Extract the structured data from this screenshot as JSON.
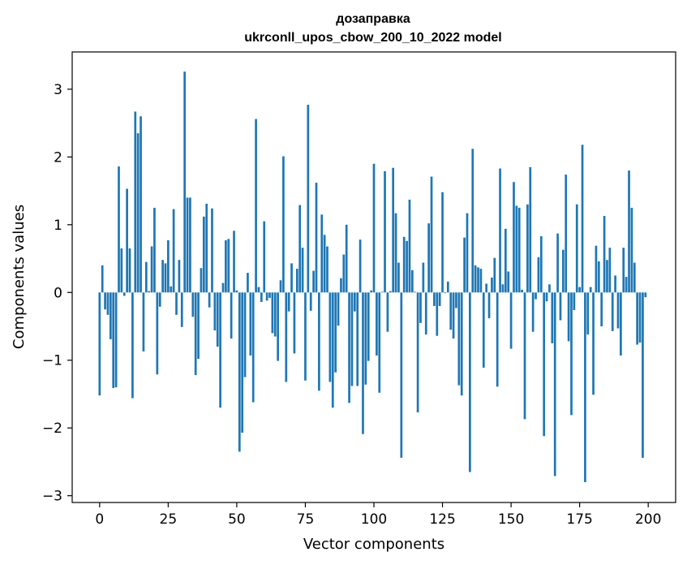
{
  "chart_data": {
    "type": "bar",
    "title": "дозаправка",
    "subtitle": "ukrconll_upos_cbow_200_10_2022 model",
    "xlabel": "Vector components",
    "ylabel": "Components values",
    "xlim": [
      -10,
      210
    ],
    "ylim": [
      -3.1,
      3.55
    ],
    "xticks": [
      0,
      25,
      50,
      75,
      100,
      125,
      150,
      175,
      200
    ],
    "yticks": [
      -3,
      -2,
      -1,
      0,
      1,
      2,
      3
    ],
    "grid": false,
    "bar_color": "#1f77b4",
    "x": [
      0,
      1,
      2,
      3,
      4,
      5,
      6,
      7,
      8,
      9,
      10,
      11,
      12,
      13,
      14,
      15,
      16,
      17,
      18,
      19,
      20,
      21,
      22,
      23,
      24,
      25,
      26,
      27,
      28,
      29,
      30,
      31,
      32,
      33,
      34,
      35,
      36,
      37,
      38,
      39,
      40,
      41,
      42,
      43,
      44,
      45,
      46,
      47,
      48,
      49,
      50,
      51,
      52,
      53,
      54,
      55,
      56,
      57,
      58,
      59,
      60,
      61,
      62,
      63,
      64,
      65,
      66,
      67,
      68,
      69,
      70,
      71,
      72,
      73,
      74,
      75,
      76,
      77,
      78,
      79,
      80,
      81,
      82,
      83,
      84,
      85,
      86,
      87,
      88,
      89,
      90,
      91,
      92,
      93,
      94,
      95,
      96,
      97,
      98,
      99,
      100,
      101,
      102,
      103,
      104,
      105,
      106,
      107,
      108,
      109,
      110,
      111,
      112,
      113,
      114,
      115,
      116,
      117,
      118,
      119,
      120,
      121,
      122,
      123,
      124,
      125,
      126,
      127,
      128,
      129,
      130,
      131,
      132,
      133,
      134,
      135,
      136,
      137,
      138,
      139,
      140,
      141,
      142,
      143,
      144,
      145,
      146,
      147,
      148,
      149,
      150,
      151,
      152,
      153,
      154,
      155,
      156,
      157,
      158,
      159,
      160,
      161,
      162,
      163,
      164,
      165,
      166,
      167,
      168,
      169,
      170,
      171,
      172,
      173,
      174,
      175,
      176,
      177,
      178,
      179,
      180,
      181,
      182,
      183,
      184,
      185,
      186,
      187,
      188,
      189,
      190,
      191,
      192,
      193,
      194,
      195,
      196,
      197,
      198,
      199
    ],
    "values": [
      -1.52,
      0.4,
      -0.25,
      -0.33,
      -0.69,
      -1.41,
      -1.4,
      1.86,
      0.65,
      -0.05,
      1.53,
      0.65,
      -1.56,
      2.67,
      2.35,
      2.6,
      -0.87,
      0.45,
      0.02,
      0.68,
      1.25,
      -1.21,
      -0.21,
      0.48,
      0.43,
      0.77,
      0.09,
      1.23,
      -0.33,
      0.48,
      -0.51,
      3.26,
      1.4,
      1.4,
      -0.36,
      -1.22,
      -0.98,
      0.36,
      1.12,
      1.31,
      -0.22,
      1.24,
      -0.56,
      -0.8,
      -1.7,
      0.14,
      0.77,
      0.79,
      -0.68,
      0.91,
      0.03,
      -2.35,
      -2.07,
      -1.25,
      0.29,
      -0.93,
      -1.62,
      2.56,
      0.08,
      -0.14,
      1.05,
      -0.12,
      -0.08,
      -0.6,
      -0.65,
      -1.01,
      0.18,
      2.01,
      -1.32,
      -0.28,
      0.43,
      -0.9,
      0.35,
      1.29,
      0.66,
      -1.3,
      2.77,
      -0.27,
      0.32,
      1.62,
      -1.45,
      1.15,
      0.85,
      0.68,
      -1.32,
      -1.7,
      -1.18,
      -0.49,
      0.21,
      0.56,
      1.0,
      -1.63,
      -1.38,
      -0.28,
      -1.38,
      0.78,
      -2.09,
      -1.36,
      -1.01,
      0.03,
      1.9,
      -0.93,
      -1.48,
      0.01,
      1.79,
      -0.58,
      0.02,
      1.84,
      1.17,
      0.44,
      -2.44,
      0.82,
      0.76,
      1.37,
      0.33,
      0.01,
      -1.77,
      -0.45,
      0.44,
      -0.62,
      1.02,
      1.71,
      -0.2,
      -0.64,
      -0.2,
      1.48,
      -0.01,
      0.16,
      -0.55,
      -0.68,
      -0.23,
      -1.37,
      -1.52,
      0.81,
      1.17,
      -2.65,
      2.12,
      0.4,
      0.37,
      0.35,
      -1.11,
      0.13,
      -0.38,
      0.22,
      0.51,
      -1.39,
      1.83,
      0.12,
      0.94,
      0.31,
      -0.83,
      1.63,
      1.28,
      1.25,
      0.04,
      -1.87,
      1.3,
      1.85,
      -0.58,
      -0.1,
      0.52,
      0.83,
      -2.12,
      -0.13,
      0.12,
      -0.75,
      -2.71,
      0.87,
      -0.41,
      0.63,
      1.74,
      -0.72,
      -1.81,
      -0.26,
      1.3,
      0.08,
      2.18,
      -2.8,
      -0.62,
      0.08,
      -1.51,
      0.69,
      0.46,
      -0.5,
      1.13,
      0.48,
      0.66,
      -0.57,
      0.25,
      -0.53,
      -0.93,
      0.66,
      0.23,
      1.8,
      1.25,
      0.44,
      -0.77,
      -0.74,
      -2.44,
      -0.07
    ]
  }
}
